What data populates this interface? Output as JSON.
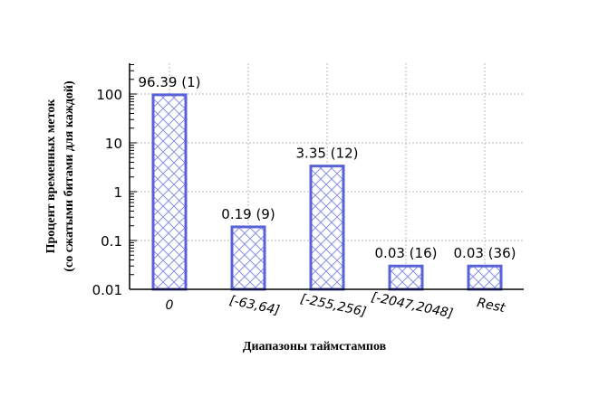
{
  "chart_data": {
    "type": "bar",
    "title": "",
    "xlabel": "Диапазоны таймстампов",
    "ylabel": "Процент временных меток",
    "ylabel_line2": "(со сжатыми битами для каждой)",
    "yscale": "log",
    "ylim": [
      0.01,
      200
    ],
    "yticks": [
      "0.01",
      "0.1",
      "1",
      "10",
      "100"
    ],
    "grid": true,
    "legend": null,
    "categories": [
      "0",
      "[-63,64]",
      "[-255,256]",
      "[-2047,2048]",
      "Rest"
    ],
    "values": [
      96.39,
      0.19,
      3.35,
      0.03,
      0.03
    ],
    "bits": [
      1,
      9,
      12,
      16,
      36
    ],
    "data_labels": [
      "96.39 (1)",
      "0.19 (9)",
      "3.35 (12)",
      "0.03 (16)",
      "0.03 (36)"
    ],
    "colors": {
      "bar_edge": "#5a62d8",
      "hatch": "#8a90e6",
      "grid": "#bbbbbb",
      "axis": "#000000"
    }
  }
}
